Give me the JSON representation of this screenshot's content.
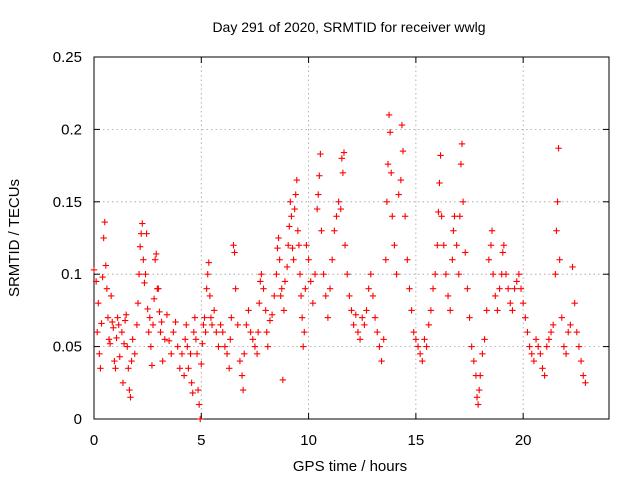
{
  "chart_data": {
    "type": "scatter",
    "title": "Day 291 of 2020, SRMTID for receiver wwlg",
    "xlabel": "GPS time / hours",
    "ylabel": "SRMTID / TECUs",
    "xlim": [
      0,
      24
    ],
    "ylim": [
      0,
      0.25
    ],
    "xticks": [
      0,
      5,
      10,
      15,
      20
    ],
    "xtick_labels": [
      "0",
      "5",
      "10",
      "15",
      "20"
    ],
    "yticks": [
      0,
      0.05,
      0.1,
      0.15,
      0.2,
      0.25
    ],
    "ytick_labels": [
      "0",
      "0.05",
      "0.1",
      "0.15",
      "0.2",
      "0.25"
    ],
    "grid": true,
    "marker": "+",
    "color": "#ff0000",
    "series": [
      {
        "name": "SRMTID",
        "points": [
          [
            0.0,
            0.103
          ],
          [
            0.1,
            0.095
          ],
          [
            0.15,
            0.06
          ],
          [
            0.2,
            0.08
          ],
          [
            0.25,
            0.045
          ],
          [
            0.3,
            0.035
          ],
          [
            0.35,
            0.066
          ],
          [
            0.4,
            0.098
          ],
          [
            0.45,
            0.125
          ],
          [
            0.5,
            0.136
          ],
          [
            0.55,
            0.106
          ],
          [
            0.6,
            0.09
          ],
          [
            0.65,
            0.07
          ],
          [
            0.7,
            0.055
          ],
          [
            0.75,
            0.052
          ],
          [
            0.8,
            0.085
          ],
          [
            0.85,
            0.067
          ],
          [
            0.9,
            0.063
          ],
          [
            0.95,
            0.04
          ],
          [
            1.0,
            0.035
          ],
          [
            1.05,
            0.056
          ],
          [
            1.1,
            0.07
          ],
          [
            1.15,
            0.065
          ],
          [
            1.2,
            0.043
          ],
          [
            1.3,
            0.06
          ],
          [
            1.35,
            0.025
          ],
          [
            1.4,
            0.052
          ],
          [
            1.45,
            0.068
          ],
          [
            1.5,
            0.072
          ],
          [
            1.55,
            0.05
          ],
          [
            1.6,
            0.035
          ],
          [
            1.65,
            0.02
          ],
          [
            1.7,
            0.015
          ],
          [
            1.75,
            0.04
          ],
          [
            1.8,
            0.055
          ],
          [
            1.9,
            0.045
          ],
          [
            2.0,
            0.065
          ],
          [
            2.05,
            0.08
          ],
          [
            2.1,
            0.1
          ],
          [
            2.15,
            0.119
          ],
          [
            2.2,
            0.128
          ],
          [
            2.25,
            0.135
          ],
          [
            2.3,
            0.11
          ],
          [
            2.35,
            0.094
          ],
          [
            2.4,
            0.1
          ],
          [
            2.45,
            0.128
          ],
          [
            2.5,
            0.076
          ],
          [
            2.55,
            0.06
          ],
          [
            2.6,
            0.07
          ],
          [
            2.65,
            0.05
          ],
          [
            2.7,
            0.037
          ],
          [
            2.75,
            0.065
          ],
          [
            2.8,
            0.083
          ],
          [
            2.85,
            0.11
          ],
          [
            2.9,
            0.114
          ],
          [
            2.95,
            0.09
          ],
          [
            3.0,
            0.09
          ],
          [
            3.05,
            0.074
          ],
          [
            3.1,
            0.06
          ],
          [
            3.15,
            0.067
          ],
          [
            3.2,
            0.04
          ],
          [
            3.3,
            0.055
          ],
          [
            3.4,
            0.072
          ],
          [
            3.5,
            0.054
          ],
          [
            3.6,
            0.045
          ],
          [
            3.7,
            0.06
          ],
          [
            3.8,
            0.067
          ],
          [
            3.9,
            0.05
          ],
          [
            4.0,
            0.035
          ],
          [
            4.1,
            0.045
          ],
          [
            4.2,
            0.03
          ],
          [
            4.25,
            0.055
          ],
          [
            4.3,
            0.065
          ],
          [
            4.35,
            0.05
          ],
          [
            4.4,
            0.035
          ],
          [
            4.5,
            0.045
          ],
          [
            4.55,
            0.025
          ],
          [
            4.6,
            0.018
          ],
          [
            4.65,
            0.06
          ],
          [
            4.7,
            0.07
          ],
          [
            4.75,
            0.055
          ],
          [
            4.8,
            0.045
          ],
          [
            4.85,
            0.02
          ],
          [
            4.9,
            0.01
          ],
          [
            4.95,
            0.0
          ],
          [
            5.0,
            0.038
          ],
          [
            5.05,
            0.052
          ],
          [
            5.1,
            0.065
          ],
          [
            5.15,
            0.07
          ],
          [
            5.2,
            0.06
          ],
          [
            5.25,
            0.09
          ],
          [
            5.3,
            0.1
          ],
          [
            5.35,
            0.108
          ],
          [
            5.4,
            0.085
          ],
          [
            5.45,
            0.07
          ],
          [
            5.5,
            0.065
          ],
          [
            5.6,
            0.075
          ],
          [
            5.7,
            0.06
          ],
          [
            5.8,
            0.05
          ],
          [
            5.9,
            0.065
          ],
          [
            6.0,
            0.06
          ],
          [
            6.1,
            0.05
          ],
          [
            6.2,
            0.045
          ],
          [
            6.3,
            0.035
          ],
          [
            6.35,
            0.055
          ],
          [
            6.4,
            0.07
          ],
          [
            6.5,
            0.12
          ],
          [
            6.55,
            0.115
          ],
          [
            6.6,
            0.09
          ],
          [
            6.7,
            0.065
          ],
          [
            6.8,
            0.04
          ],
          [
            6.9,
            0.03
          ],
          [
            6.95,
            0.02
          ],
          [
            7.0,
            0.045
          ],
          [
            7.1,
            0.065
          ],
          [
            7.2,
            0.075
          ],
          [
            7.3,
            0.06
          ],
          [
            7.4,
            0.055
          ],
          [
            7.5,
            0.05
          ],
          [
            7.6,
            0.045
          ],
          [
            7.65,
            0.06
          ],
          [
            7.7,
            0.08
          ],
          [
            7.75,
            0.095
          ],
          [
            7.8,
            0.1
          ],
          [
            7.9,
            0.09
          ],
          [
            8.0,
            0.075
          ],
          [
            8.05,
            0.06
          ],
          [
            8.1,
            0.05
          ],
          [
            8.2,
            0.068
          ],
          [
            8.3,
            0.072
          ],
          [
            8.4,
            0.085
          ],
          [
            8.5,
            0.1
          ],
          [
            8.55,
            0.118
          ],
          [
            8.6,
            0.125
          ],
          [
            8.65,
            0.11
          ],
          [
            8.7,
            0.085
          ],
          [
            8.75,
            0.09
          ],
          [
            8.8,
            0.027
          ],
          [
            8.85,
            0.075
          ],
          [
            8.9,
            0.095
          ],
          [
            9.0,
            0.105
          ],
          [
            9.05,
            0.12
          ],
          [
            9.1,
            0.133
          ],
          [
            9.15,
            0.15
          ],
          [
            9.2,
            0.14
          ],
          [
            9.25,
            0.118
          ],
          [
            9.3,
            0.11
          ],
          [
            9.35,
            0.145
          ],
          [
            9.4,
            0.155
          ],
          [
            9.45,
            0.165
          ],
          [
            9.5,
            0.13
          ],
          [
            9.55,
            0.12
          ],
          [
            9.6,
            0.1
          ],
          [
            9.65,
            0.085
          ],
          [
            9.7,
            0.07
          ],
          [
            9.75,
            0.05
          ],
          [
            9.8,
            0.06
          ],
          [
            9.85,
            0.09
          ],
          [
            9.9,
            0.12
          ],
          [
            10.0,
            0.11
          ],
          [
            10.1,
            0.095
          ],
          [
            10.2,
            0.08
          ],
          [
            10.3,
            0.1
          ],
          [
            10.4,
            0.145
          ],
          [
            10.45,
            0.155
          ],
          [
            10.5,
            0.168
          ],
          [
            10.55,
            0.183
          ],
          [
            10.6,
            0.13
          ],
          [
            10.7,
            0.1
          ],
          [
            10.8,
            0.085
          ],
          [
            10.9,
            0.07
          ],
          [
            11.0,
            0.09
          ],
          [
            11.1,
            0.11
          ],
          [
            11.2,
            0.13
          ],
          [
            11.3,
            0.14
          ],
          [
            11.4,
            0.15
          ],
          [
            11.5,
            0.145
          ],
          [
            11.55,
            0.18
          ],
          [
            11.6,
            0.17
          ],
          [
            11.65,
            0.184
          ],
          [
            11.7,
            0.12
          ],
          [
            11.8,
            0.1
          ],
          [
            11.9,
            0.085
          ],
          [
            12.0,
            0.075
          ],
          [
            12.1,
            0.065
          ],
          [
            12.2,
            0.072
          ],
          [
            12.3,
            0.06
          ],
          [
            12.4,
            0.055
          ],
          [
            12.5,
            0.07
          ],
          [
            12.6,
            0.065
          ],
          [
            12.7,
            0.075
          ],
          [
            12.8,
            0.09
          ],
          [
            12.9,
            0.1
          ],
          [
            13.0,
            0.085
          ],
          [
            13.1,
            0.07
          ],
          [
            13.2,
            0.06
          ],
          [
            13.3,
            0.05
          ],
          [
            13.4,
            0.04
          ],
          [
            13.5,
            0.055
          ],
          [
            13.6,
            0.11
          ],
          [
            13.65,
            0.15
          ],
          [
            13.7,
            0.176
          ],
          [
            13.75,
            0.21
          ],
          [
            13.8,
            0.198
          ],
          [
            13.85,
            0.17
          ],
          [
            13.9,
            0.14
          ],
          [
            14.0,
            0.12
          ],
          [
            14.1,
            0.1
          ],
          [
            14.2,
            0.155
          ],
          [
            14.3,
            0.165
          ],
          [
            14.35,
            0.203
          ],
          [
            14.4,
            0.185
          ],
          [
            14.5,
            0.14
          ],
          [
            14.6,
            0.11
          ],
          [
            14.7,
            0.09
          ],
          [
            14.8,
            0.075
          ],
          [
            14.9,
            0.06
          ],
          [
            15.0,
            0.055
          ],
          [
            15.1,
            0.05
          ],
          [
            15.2,
            0.045
          ],
          [
            15.3,
            0.04
          ],
          [
            15.4,
            0.055
          ],
          [
            15.5,
            0.05
          ],
          [
            15.6,
            0.065
          ],
          [
            15.7,
            0.075
          ],
          [
            15.8,
            0.09
          ],
          [
            15.9,
            0.1
          ],
          [
            16.0,
            0.12
          ],
          [
            16.05,
            0.143
          ],
          [
            16.1,
            0.163
          ],
          [
            16.15,
            0.182
          ],
          [
            16.2,
            0.14
          ],
          [
            16.3,
            0.12
          ],
          [
            16.4,
            0.1
          ],
          [
            16.5,
            0.085
          ],
          [
            16.6,
            0.075
          ],
          [
            16.7,
            0.11
          ],
          [
            16.75,
            0.13
          ],
          [
            16.8,
            0.14
          ],
          [
            16.9,
            0.12
          ],
          [
            17.0,
            0.1
          ],
          [
            17.05,
            0.14
          ],
          [
            17.1,
            0.176
          ],
          [
            17.15,
            0.19
          ],
          [
            17.2,
            0.15
          ],
          [
            17.3,
            0.115
          ],
          [
            17.4,
            0.09
          ],
          [
            17.5,
            0.07
          ],
          [
            17.6,
            0.05
          ],
          [
            17.7,
            0.04
          ],
          [
            17.8,
            0.03
          ],
          [
            17.85,
            0.015
          ],
          [
            17.9,
            0.01
          ],
          [
            17.95,
            0.02
          ],
          [
            18.0,
            0.03
          ],
          [
            18.1,
            0.045
          ],
          [
            18.2,
            0.055
          ],
          [
            18.3,
            0.075
          ],
          [
            18.4,
            0.11
          ],
          [
            18.5,
            0.12
          ],
          [
            18.55,
            0.13
          ],
          [
            18.6,
            0.1
          ],
          [
            18.7,
            0.085
          ],
          [
            18.8,
            0.075
          ],
          [
            18.9,
            0.09
          ],
          [
            19.0,
            0.1
          ],
          [
            19.05,
            0.115
          ],
          [
            19.1,
            0.12
          ],
          [
            19.2,
            0.1
          ],
          [
            19.3,
            0.09
          ],
          [
            19.4,
            0.08
          ],
          [
            19.5,
            0.075
          ],
          [
            19.6,
            0.09
          ],
          [
            19.7,
            0.095
          ],
          [
            19.8,
            0.1
          ],
          [
            19.9,
            0.09
          ],
          [
            20.0,
            0.08
          ],
          [
            20.1,
            0.07
          ],
          [
            20.2,
            0.06
          ],
          [
            20.3,
            0.05
          ],
          [
            20.4,
            0.045
          ],
          [
            20.5,
            0.04
          ],
          [
            20.6,
            0.055
          ],
          [
            20.7,
            0.05
          ],
          [
            20.8,
            0.045
          ],
          [
            20.9,
            0.035
          ],
          [
            21.0,
            0.03
          ],
          [
            21.1,
            0.05
          ],
          [
            21.2,
            0.055
          ],
          [
            21.3,
            0.06
          ],
          [
            21.4,
            0.065
          ],
          [
            21.5,
            0.1
          ],
          [
            21.55,
            0.13
          ],
          [
            21.6,
            0.15
          ],
          [
            21.65,
            0.187
          ],
          [
            21.7,
            0.11
          ],
          [
            21.8,
            0.07
          ],
          [
            21.9,
            0.05
          ],
          [
            22.0,
            0.045
          ],
          [
            22.1,
            0.06
          ],
          [
            22.2,
            0.065
          ],
          [
            22.3,
            0.105
          ],
          [
            22.4,
            0.08
          ],
          [
            22.5,
            0.06
          ],
          [
            22.6,
            0.05
          ],
          [
            22.7,
            0.04
          ],
          [
            22.8,
            0.03
          ],
          [
            22.9,
            0.025
          ]
        ]
      }
    ]
  }
}
